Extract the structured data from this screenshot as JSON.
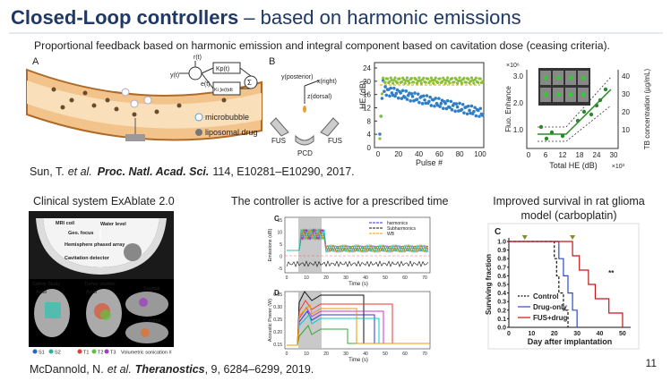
{
  "header": {
    "title_bold": "Closed-Loop controllers",
    "title_rest": "– based on harmonic emissions",
    "subtitle": "Proportional feedback based on harmonic emission and integral component based on cavitation dose (ceasing criteria)."
  },
  "sun_figure": {
    "panel_a": {
      "label": "A",
      "r": "r(t)",
      "y": "y(t)",
      "e": "e(t)",
      "kp": "Kp(t)",
      "ki": "Ki ∫e(t)dt",
      "sum": "Σ",
      "legend": [
        "microbubble",
        "liposomal drug"
      ]
    },
    "panel_b": {
      "label": "B",
      "axes": [
        "y(posterior)",
        "x(right)",
        "z(dorsal)"
      ],
      "fus": [
        "FUS",
        "FUS"
      ],
      "pcd": "PCD"
    },
    "he_chart": {
      "y_label": "HE (dB)",
      "x_label": "Pulse #",
      "yticks": [
        "0",
        "4",
        "8",
        "12",
        "16",
        "20",
        "24"
      ],
      "xticks": [
        "0",
        "20",
        "40",
        "60",
        "80",
        "100"
      ]
    },
    "fluo_chart": {
      "multiplier": "×10⁶",
      "y_label": "Fluo. Enhance",
      "y2_label": "TB concentration (µg/mL)",
      "x_label": "Total HE (dB)",
      "x_multiplier": "×10³",
      "yticks": [
        "1.0",
        "2.0",
        "3.0"
      ],
      "y2ticks": [
        "10",
        "20",
        "30",
        "40"
      ],
      "xticks": [
        "0",
        "6",
        "12",
        "18",
        "24",
        "30"
      ]
    }
  },
  "sun_citation": {
    "authors": "Sun, T.",
    "etal": "et al.",
    "journal": "Proc. Natl. Acad. Sci.",
    "details": "114, E10281–E10290, 2017."
  },
  "clinical": {
    "heading": "Clinical system ExAblate 2.0",
    "labels": [
      "MRI coil",
      "Water level",
      "Geo. focus",
      "Hemisphere phased array",
      "Cavitation detector"
    ],
    "studies": [
      "Safety Study",
      "Tumor studies"
    ],
    "views": [
      "Axial",
      "Axial",
      "Sagittal",
      "Coronal"
    ],
    "legend_safety": [
      "S1",
      "S2"
    ],
    "legend_tumor": [
      "T1",
      "T2",
      "T3"
    ],
    "legend_note": "Volumetric sonication #"
  },
  "controller": {
    "heading": "The controller is active for a prescribed time",
    "panel_c": {
      "label": "C",
      "y_label": "Emissions (dB)",
      "x_label": "Time (s)",
      "legend": [
        "harmonics",
        "Subharmonics",
        "WB"
      ],
      "yticks": [
        "15",
        "10",
        "5",
        "0",
        "-5"
      ]
    },
    "panel_d": {
      "label": "D",
      "y_label": "Acoustic Power (W)",
      "x_label": "Time (s)",
      "yticks": [
        "0.35",
        "0.30",
        "0.25",
        "0.20",
        "0.15"
      ]
    },
    "xticks": [
      "0",
      "10",
      "20",
      "30",
      "40",
      "50",
      "60",
      "70"
    ]
  },
  "survival": {
    "heading": [
      "Improved survival in rat glioma",
      "model (carboplatin)"
    ],
    "label": "C",
    "y_label": "Surviving fraction",
    "x_label": "Day after implantation",
    "yticks": [
      "0.0",
      "0.1",
      "0.2",
      "0.3",
      "0.4",
      "0.5",
      "0.6",
      "0.7",
      "0.8",
      "0.9",
      "1.0"
    ],
    "xticks": [
      "0",
      "10",
      "20",
      "30",
      "40",
      "50"
    ],
    "legend": [
      "Control",
      "Drug-only",
      "FUS+drug"
    ],
    "significance": "**"
  },
  "mcd_citation": {
    "authors": "McDannold, N.",
    "etal": "et al.",
    "journal": "Theranostics",
    "details": ", 9, 6284–6299, 2019."
  },
  "page_number": "11"
}
